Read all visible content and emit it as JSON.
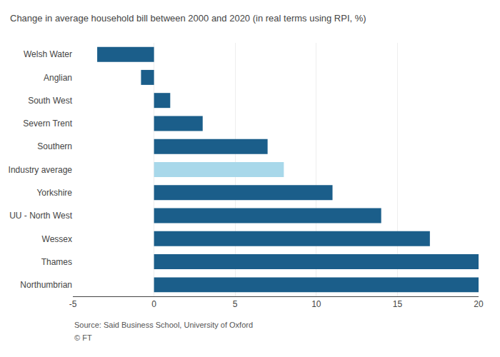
{
  "chart_data": {
    "type": "bar",
    "orientation": "horizontal",
    "title": "Change in average household bill between 2000 and 2020 (in real terms using RPI, %)",
    "categories": [
      "Welsh Water",
      "Anglian",
      "South West",
      "Severn Trent",
      "Southern",
      "Industry average",
      "Yorkshire",
      "UU - North West",
      "Wessex",
      "Thames",
      "Northumbrian"
    ],
    "values": [
      -3.5,
      -0.8,
      1.0,
      3.0,
      7.0,
      8.0,
      11.0,
      14.0,
      17.0,
      20.0,
      20.0
    ],
    "colors": [
      "#1b5e8a",
      "#1b5e8a",
      "#1b5e8a",
      "#1b5e8a",
      "#1b5e8a",
      "#a8d8ea",
      "#1b5e8a",
      "#1b5e8a",
      "#1b5e8a",
      "#1b5e8a",
      "#1b5e8a"
    ],
    "xlim": [
      -5,
      20
    ],
    "xticks": [
      -5,
      0,
      5,
      10,
      15,
      20
    ],
    "grid": true,
    "annotations": [
      "Source: Said Business School, University of Oxford",
      "© FT"
    ]
  }
}
